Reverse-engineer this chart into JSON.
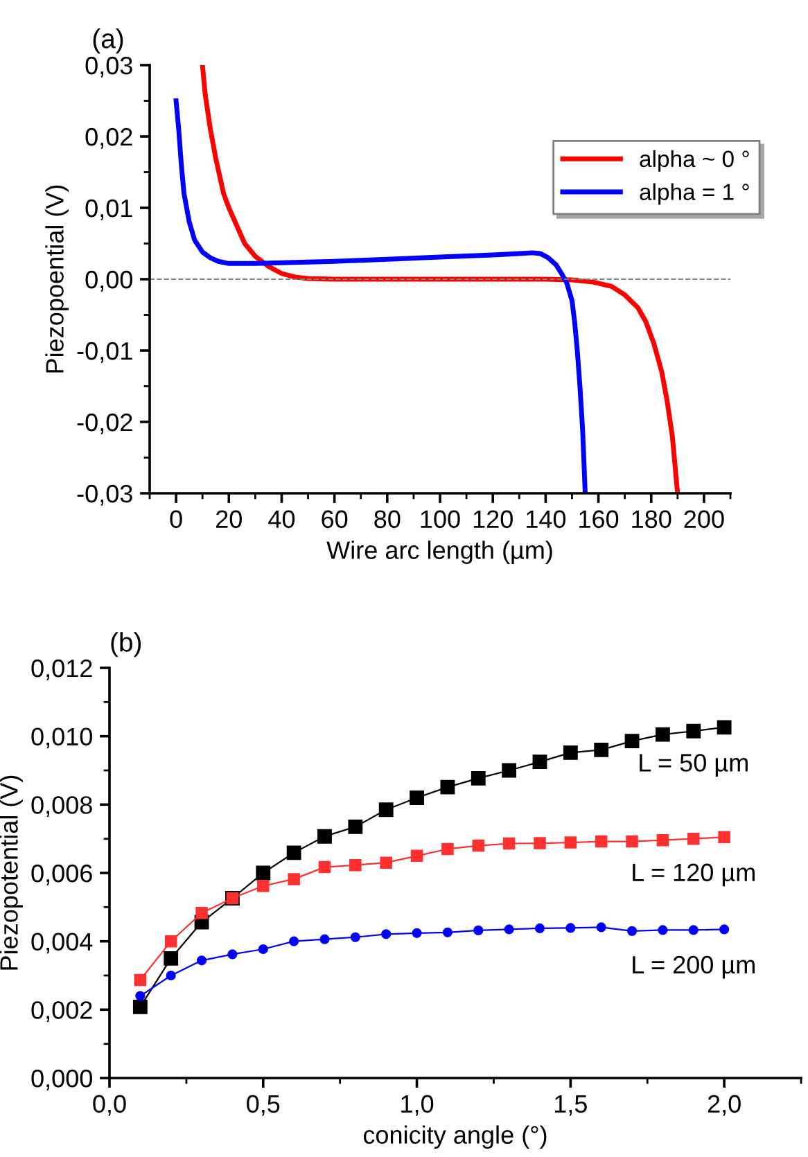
{
  "chart_data": [
    {
      "type": "line",
      "title": "(a)",
      "xlabel": "Wire arc length (µm)",
      "ylabel": "Piezopoential (V)",
      "legend": "top right",
      "grid": false,
      "xlim": [
        -10,
        210
      ],
      "xticks": [
        0,
        20,
        40,
        60,
        80,
        100,
        120,
        140,
        160,
        180,
        200
      ],
      "ylim": [
        -0.03,
        0.03
      ],
      "yticks": [
        {
          "value": -0.03,
          "label": "-0,03"
        },
        {
          "value": -0.02,
          "label": "-0,02"
        },
        {
          "value": -0.01,
          "label": "-0,01"
        },
        {
          "value": 0,
          "label": "0,00"
        },
        {
          "value": 0.01,
          "label": "0,01"
        },
        {
          "value": 0.02,
          "label": "0,02"
        },
        {
          "value": 0.03,
          "label": "0,03"
        }
      ],
      "ref_lines": [
        {
          "axis": "y",
          "value": 0,
          "color": "#808080",
          "line_style": "dashed"
        }
      ],
      "series": [
        {
          "name": "alpha ~ 0 °",
          "color": "#ff0000",
          "x": [
            10,
            11,
            13,
            15,
            18,
            20,
            23,
            26,
            30,
            35,
            40,
            45,
            50,
            60,
            80,
            100,
            120,
            140,
            150,
            158,
            165,
            170,
            175,
            178,
            181,
            184,
            186,
            188,
            190
          ],
          "values": [
            0.03,
            0.026,
            0.021,
            0.017,
            0.012,
            0.01,
            0.0075,
            0.005,
            0.0032,
            0.0018,
            0.0008,
            0.0003,
            0.0001,
            0,
            0,
            0,
            0,
            0,
            -0.0001,
            -0.0004,
            -0.001,
            -0.0022,
            -0.004,
            -0.006,
            -0.009,
            -0.013,
            -0.017,
            -0.022,
            -0.03
          ]
        },
        {
          "name": "alpha = 1 °",
          "color": "#0000ff",
          "x": [
            0,
            1,
            2,
            3,
            5,
            7,
            10,
            13,
            16,
            20,
            30,
            40,
            60,
            80,
            100,
            120,
            130,
            135,
            138,
            141,
            144,
            146,
            148,
            150,
            151,
            152,
            153,
            154,
            155
          ],
          "values": [
            0.025,
            0.021,
            0.016,
            0.012,
            0.008,
            0.0055,
            0.0038,
            0.003,
            0.0025,
            0.0022,
            0.0022,
            0.0023,
            0.0025,
            0.0028,
            0.0031,
            0.0034,
            0.0036,
            0.0037,
            0.0036,
            0.003,
            0.002,
            0.0008,
            -0.0005,
            -0.003,
            -0.006,
            -0.01,
            -0.015,
            -0.021,
            -0.03
          ]
        }
      ]
    },
    {
      "type": "line",
      "title": "(b)",
      "xlabel": "conicity angle (°)",
      "ylabel": "Piezopotential (V)",
      "legend": false,
      "grid": false,
      "xlim": [
        0,
        2.25
      ],
      "xticks": [
        {
          "value": 0,
          "label": "0,0"
        },
        {
          "value": 0.5,
          "label": "0,5"
        },
        {
          "value": 1.0,
          "label": "1,0"
        },
        {
          "value": 1.5,
          "label": "1,5"
        },
        {
          "value": 2.0,
          "label": "2,0"
        }
      ],
      "ylim": [
        0,
        0.012
      ],
      "yticks": [
        {
          "value": 0,
          "label": "0,000"
        },
        {
          "value": 0.002,
          "label": "0,002"
        },
        {
          "value": 0.004,
          "label": "0,004"
        },
        {
          "value": 0.006,
          "label": "0,006"
        },
        {
          "value": 0.008,
          "label": "0,008"
        },
        {
          "value": 0.01,
          "label": "0,010"
        },
        {
          "value": 0.012,
          "label": "0,012"
        }
      ],
      "x": [
        0.1,
        0.2,
        0.3,
        0.4,
        0.5,
        0.6,
        0.7,
        0.8,
        0.9,
        1.0,
        1.1,
        1.2,
        1.3,
        1.4,
        1.5,
        1.6,
        1.7,
        1.8,
        1.9,
        2.0
      ],
      "series": [
        {
          "name": "L = 50 µm",
          "color": "#000000",
          "marker": "square",
          "values": [
            0.00208,
            0.0035,
            0.00456,
            0.00526,
            0.006,
            0.00659,
            0.00707,
            0.00735,
            0.00785,
            0.0082,
            0.00851,
            0.00877,
            0.009,
            0.00925,
            0.00952,
            0.0096,
            0.00986,
            0.01005,
            0.01015,
            0.01026
          ]
        },
        {
          "name": "L = 120 µm",
          "color": "#ff3030",
          "marker": "square",
          "values": [
            0.00287,
            0.004,
            0.00483,
            0.00526,
            0.00562,
            0.00582,
            0.00617,
            0.00623,
            0.0063,
            0.0065,
            0.0067,
            0.0068,
            0.00686,
            0.00687,
            0.00689,
            0.00692,
            0.00692,
            0.00696,
            0.007,
            0.00705
          ]
        },
        {
          "name": "L = 200 µm",
          "color": "#0000ff",
          "marker": "circle",
          "values": [
            0.0024,
            0.003,
            0.00344,
            0.00362,
            0.00377,
            0.004,
            0.00406,
            0.00412,
            0.00421,
            0.00424,
            0.00426,
            0.00432,
            0.00435,
            0.00438,
            0.00439,
            0.00441,
            0.0043,
            0.00433,
            0.00433,
            0.00435
          ]
        }
      ]
    }
  ]
}
